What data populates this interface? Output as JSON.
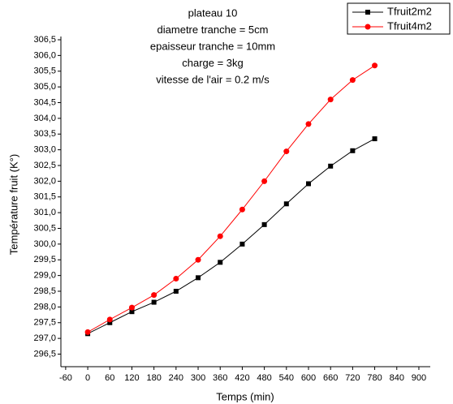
{
  "chart_data": {
    "type": "line",
    "annotations": [
      "plateau 10",
      "diametre tranche = 5cm",
      "epaisseur tranche = 10mm",
      "charge = 3kg",
      "vitesse de l'air = 0.2 m/s"
    ],
    "x_label": "Temps (min)",
    "y_label": "Température fruit (K°)",
    "x": [
      0,
      60,
      120,
      180,
      240,
      300,
      360,
      420,
      480,
      540,
      600,
      660,
      720,
      780
    ],
    "series": [
      {
        "name": "Tfruit2m2",
        "color": "#000000",
        "marker": "square",
        "values": [
          297.15,
          297.5,
          297.85,
          298.15,
          298.5,
          298.93,
          299.42,
          300.0,
          300.62,
          301.28,
          301.92,
          302.48,
          302.97,
          303.35
        ]
      },
      {
        "name": "Tfruit4m2",
        "color": "#ff0000",
        "marker": "circle",
        "values": [
          297.2,
          297.6,
          297.98,
          298.38,
          298.9,
          299.5,
          300.25,
          301.1,
          302.0,
          302.95,
          303.82,
          304.6,
          305.22,
          305.68
        ]
      }
    ],
    "xlim": [
      -73,
      931
    ],
    "xticks": [
      -60,
      0,
      60,
      120,
      180,
      240,
      300,
      360,
      420,
      480,
      540,
      600,
      660,
      720,
      780,
      840,
      900
    ],
    "ylim": [
      296.1,
      306.5
    ],
    "yticks": [
      {
        "value": 296.5,
        "label": "296,5"
      },
      {
        "value": 297,
        "label": "297,0"
      },
      {
        "value": 297.5,
        "label": "297,5"
      },
      {
        "value": 298,
        "label": "298,0"
      },
      {
        "value": 298.5,
        "label": "298,5"
      },
      {
        "value": 299,
        "label": "299,0"
      },
      {
        "value": 299.5,
        "label": "299,5"
      },
      {
        "value": 300,
        "label": "300,0"
      },
      {
        "value": 300.5,
        "label": "300,5"
      },
      {
        "value": 301,
        "label": "301,0"
      },
      {
        "value": 301.5,
        "label": "301,5"
      },
      {
        "value": 302,
        "label": "302,0"
      },
      {
        "value": 302.5,
        "label": "302,5"
      },
      {
        "value": 303,
        "label": "303,0"
      },
      {
        "value": 303.5,
        "label": "303,5"
      },
      {
        "value": 304,
        "label": "304,0"
      },
      {
        "value": 304.5,
        "label": "304,5"
      },
      {
        "value": 305,
        "label": "305,0"
      },
      {
        "value": 305.5,
        "label": "305,5"
      },
      {
        "value": 306,
        "label": "306,0"
      },
      {
        "value": 306.5,
        "label": "306,5"
      }
    ],
    "grid": false,
    "legend": "top-right"
  }
}
